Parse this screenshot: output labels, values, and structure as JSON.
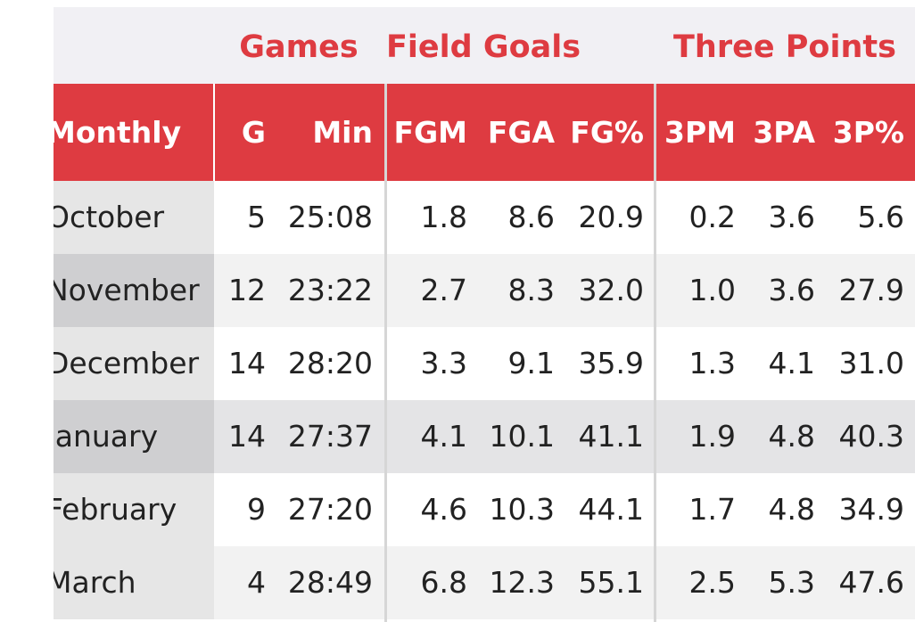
{
  "colors": {
    "accent": "#de3b41",
    "group_row_bg": "#f1f0f4",
    "row_white": "#ffffff",
    "row_alt": "#f2f2f2",
    "row_dark": "#e4e4e6",
    "label_col_light": "#e6e6e6",
    "label_col_dark": "#cfcfd1"
  },
  "groups": [
    {
      "label": "Games"
    },
    {
      "label": "Field Goals"
    },
    {
      "label": "Three Points"
    }
  ],
  "columns": [
    "Monthly",
    "G",
    "Min",
    "FGM",
    "FGA",
    "FG%",
    "3PM",
    "3PA",
    "3P%"
  ],
  "rows": [
    {
      "month": "October",
      "values": [
        "5",
        "25:08",
        "1.8",
        "8.6",
        "20.9",
        "0.2",
        "3.6",
        "5.6"
      ]
    },
    {
      "month": "November",
      "values": [
        "12",
        "23:22",
        "2.7",
        "8.3",
        "32.0",
        "1.0",
        "3.6",
        "27.9"
      ]
    },
    {
      "month": "December",
      "values": [
        "14",
        "28:20",
        "3.3",
        "9.1",
        "35.9",
        "1.3",
        "4.1",
        "31.0"
      ]
    },
    {
      "month": "January",
      "values": [
        "14",
        "27:37",
        "4.1",
        "10.1",
        "41.1",
        "1.9",
        "4.8",
        "40.3"
      ]
    },
    {
      "month": "February",
      "values": [
        "9",
        "27:20",
        "4.6",
        "10.3",
        "44.1",
        "1.7",
        "4.8",
        "34.9"
      ]
    },
    {
      "month": "March",
      "values": [
        "4",
        "28:49",
        "6.8",
        "12.3",
        "55.1",
        "2.5",
        "5.3",
        "47.6"
      ]
    }
  ]
}
